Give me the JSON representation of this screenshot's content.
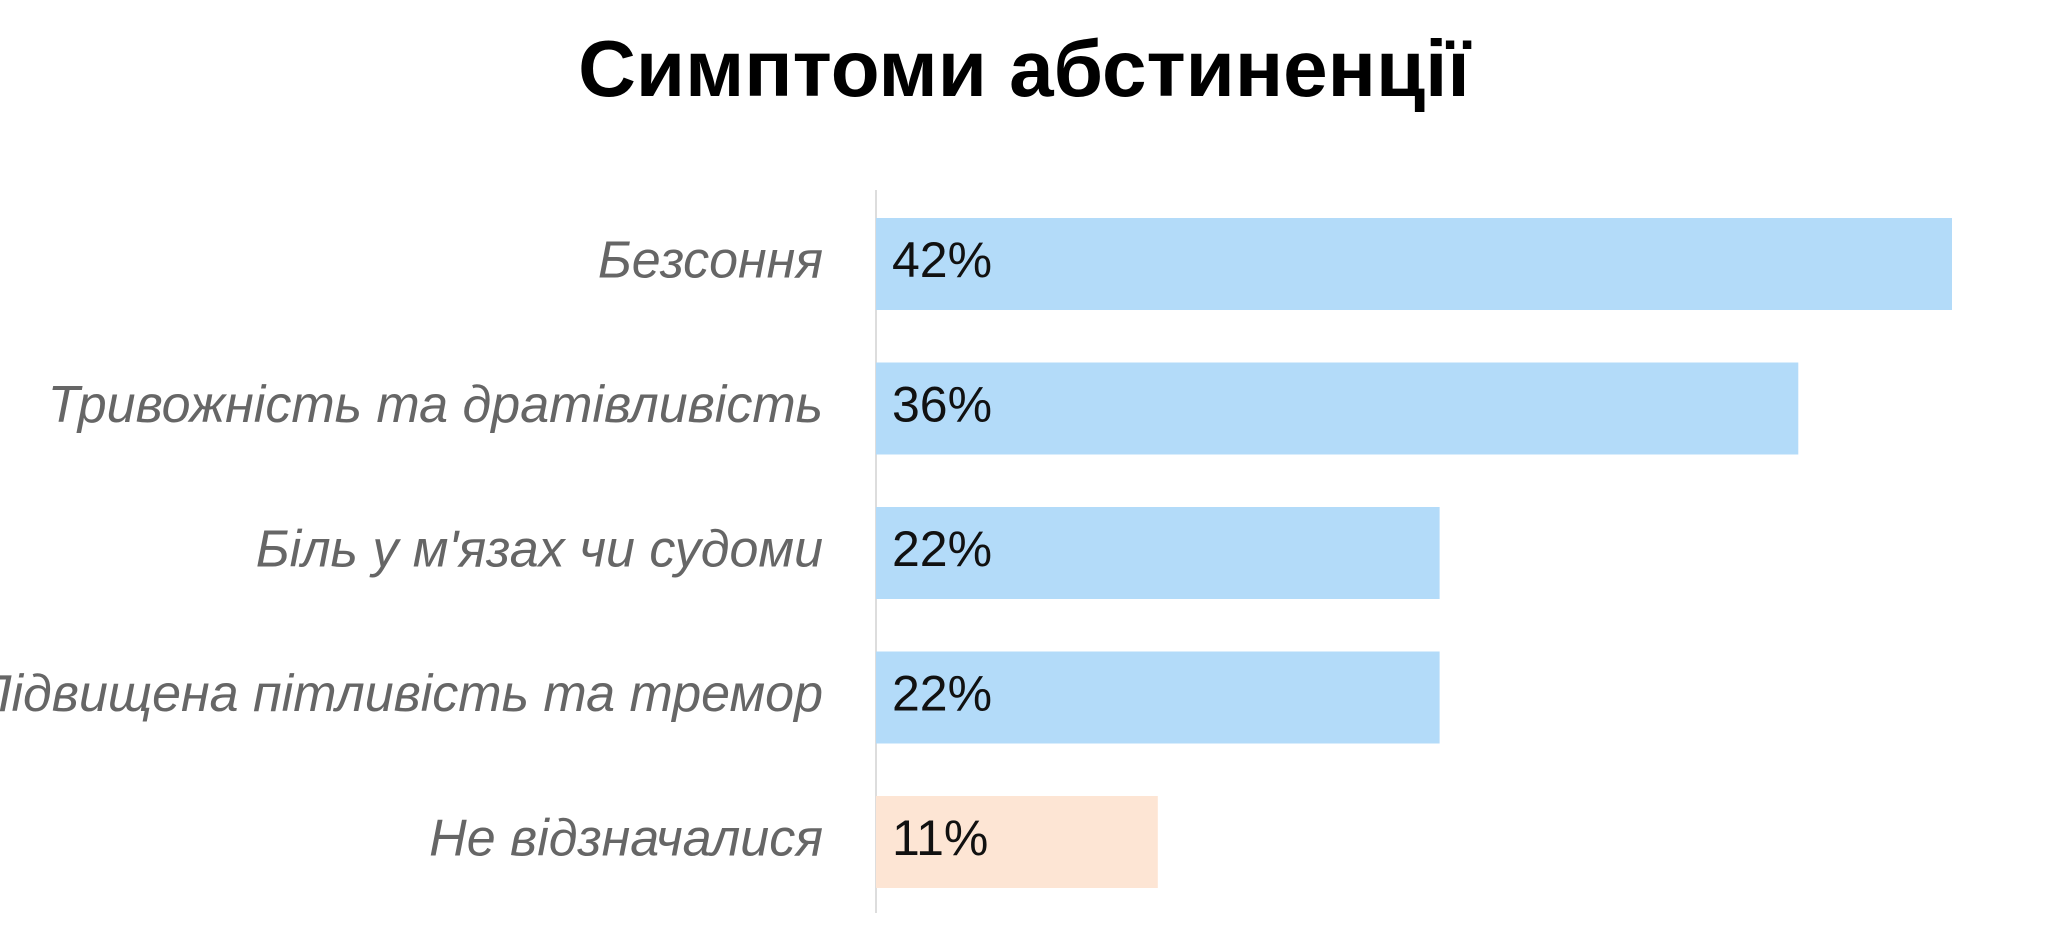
{
  "chart_data": {
    "type": "bar",
    "orientation": "horizontal",
    "title": "Симптоми абстиненції",
    "categories": [
      "Безсоння",
      "Тривожність та дратівливість",
      "Біль у м'язах чи судоми",
      "Підвищена пітливість та тремор",
      "Не відзначалися"
    ],
    "values": [
      42,
      36,
      22,
      22,
      11
    ],
    "value_labels": [
      "42%",
      "36%",
      "22%",
      "22%",
      "11%"
    ],
    "colors": [
      "#b3dbf9",
      "#b3dbf9",
      "#b3dbf9",
      "#b3dbf9",
      "#fde5d4"
    ]
  }
}
